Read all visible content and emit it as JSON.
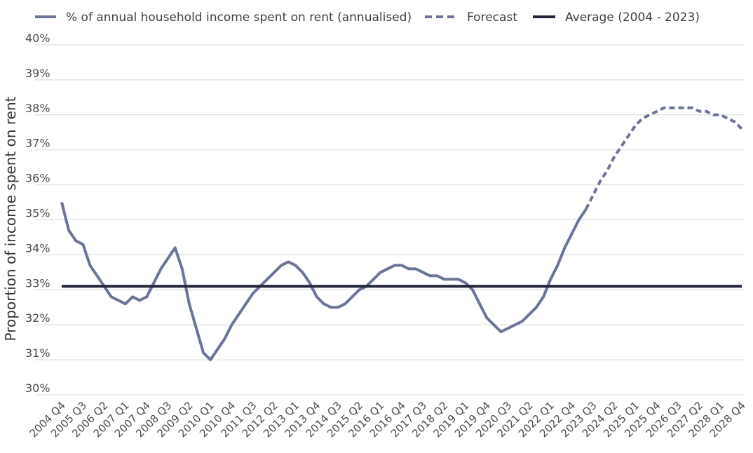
{
  "chart_data": {
    "type": "line",
    "title": "",
    "ylabel": "Proportion of income spent on rent",
    "xlabel": "",
    "ylim": [
      30,
      40
    ],
    "y_ticks": [
      "30%",
      "31%",
      "32%",
      "33%",
      "34%",
      "35%",
      "36%",
      "37%",
      "38%",
      "39%",
      "40%"
    ],
    "grid": true,
    "legend_position": "top",
    "quarters": [
      "2004 Q4",
      "2005 Q1",
      "2005 Q2",
      "2005 Q3",
      "2005 Q4",
      "2006 Q1",
      "2006 Q2",
      "2006 Q3",
      "2006 Q4",
      "2007 Q1",
      "2007 Q2",
      "2007 Q3",
      "2007 Q4",
      "2008 Q1",
      "2008 Q2",
      "2008 Q3",
      "2008 Q4",
      "2009 Q1",
      "2009 Q2",
      "2009 Q3",
      "2009 Q4",
      "2010 Q1",
      "2010 Q2",
      "2010 Q3",
      "2010 Q4",
      "2011 Q1",
      "2011 Q2",
      "2011 Q3",
      "2011 Q4",
      "2012 Q1",
      "2012 Q2",
      "2012 Q3",
      "2012 Q4",
      "2013 Q1",
      "2013 Q2",
      "2013 Q3",
      "2013 Q4",
      "2014 Q1",
      "2014 Q2",
      "2014 Q3",
      "2014 Q4",
      "2015 Q1",
      "2015 Q2",
      "2015 Q3",
      "2015 Q4",
      "2016 Q1",
      "2016 Q2",
      "2016 Q3",
      "2016 Q4",
      "2017 Q1",
      "2017 Q2",
      "2017 Q3",
      "2017 Q4",
      "2018 Q1",
      "2018 Q2",
      "2018 Q3",
      "2018 Q4",
      "2019 Q1",
      "2019 Q2",
      "2019 Q3",
      "2019 Q4",
      "2020 Q1",
      "2020 Q2",
      "2020 Q3",
      "2020 Q4",
      "2021 Q1",
      "2021 Q2",
      "2021 Q3",
      "2021 Q4",
      "2022 Q1",
      "2022 Q2",
      "2022 Q3",
      "2022 Q4",
      "2023 Q1",
      "2023 Q2",
      "2023 Q3",
      "2023 Q4",
      "2024 Q1",
      "2024 Q2",
      "2024 Q3",
      "2024 Q4",
      "2025 Q1",
      "2025 Q2",
      "2025 Q3",
      "2025 Q4",
      "2026 Q1",
      "2026 Q2",
      "2026 Q3",
      "2026 Q4",
      "2027 Q1",
      "2027 Q2",
      "2027 Q3",
      "2027 Q4",
      "2028 Q1",
      "2028 Q2",
      "2028 Q3",
      "2028 Q4"
    ],
    "x_tick_labels": [
      "2004 Q4",
      "2005 Q3",
      "2006 Q2",
      "2007 Q1",
      "2007 Q4",
      "2008 Q3",
      "2009 Q2",
      "2010 Q1",
      "2010 Q4",
      "2011 Q3",
      "2012 Q2",
      "2013 Q1",
      "2013 Q4",
      "2014 Q3",
      "2015 Q2",
      "2016 Q1",
      "2016 Q4",
      "2017 Q3",
      "2018 Q2",
      "2019 Q1",
      "2019 Q4",
      "2020 Q3",
      "2021 Q2",
      "2022 Q1",
      "2022 Q4",
      "2023 Q3",
      "2024 Q2",
      "2025 Q1",
      "2025 Q4",
      "2026 Q3",
      "2027 Q2",
      "2028 Q1",
      "2028 Q4"
    ],
    "series": [
      {
        "name": "% of annual household income spent on rent (annualised)",
        "color": "#6b7499",
        "style": "solid",
        "start_index": 0,
        "values": [
          35.5,
          34.7,
          34.4,
          34.3,
          33.7,
          33.4,
          33.1,
          32.8,
          32.7,
          32.6,
          32.8,
          32.7,
          32.8,
          33.2,
          33.6,
          33.9,
          34.2,
          33.6,
          32.6,
          31.9,
          31.2,
          31.0,
          31.3,
          31.6,
          32.0,
          32.3,
          32.6,
          32.9,
          33.1,
          33.3,
          33.5,
          33.7,
          33.8,
          33.7,
          33.5,
          33.2,
          32.8,
          32.6,
          32.5,
          32.5,
          32.6,
          32.8,
          33.0,
          33.1,
          33.3,
          33.5,
          33.6,
          33.7,
          33.7,
          33.6,
          33.6,
          33.5,
          33.4,
          33.4,
          33.3,
          33.3,
          33.3,
          33.2,
          33.0,
          32.6,
          32.2,
          32.0,
          31.8,
          31.9,
          32.0,
          32.1,
          32.3,
          32.5,
          32.8,
          33.3,
          33.7,
          34.2,
          34.6,
          35.0,
          35.3
        ]
      },
      {
        "name": "Forecast",
        "color": "#6b7499",
        "style": "dashed",
        "start_index": 74,
        "values": [
          35.3,
          35.7,
          36.1,
          36.4,
          36.8,
          37.1,
          37.4,
          37.7,
          37.9,
          38.0,
          38.1,
          38.2,
          38.2,
          38.2,
          38.2,
          38.2,
          38.1,
          38.1,
          38.0,
          38.0,
          37.9,
          37.8,
          37.6
        ]
      },
      {
        "name": "Average (2004 - 2023)",
        "color": "#23263a",
        "style": "solid",
        "start_index": 0,
        "constant": 33.1,
        "end_index": 96
      }
    ]
  }
}
